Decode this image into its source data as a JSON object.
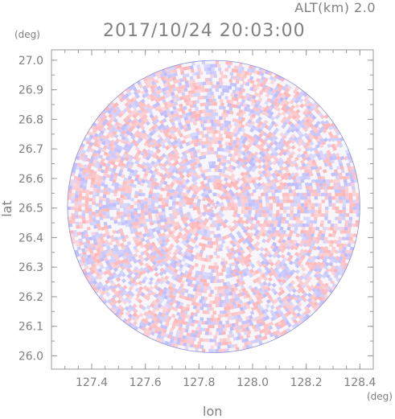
{
  "header": {
    "alt_label": "ALT(km) 2.0",
    "datetime": "2017/10/24 20:03:00"
  },
  "axes": {
    "x_unit": "(deg)",
    "y_unit": "(deg)",
    "x_label": "lon",
    "y_label": "lat",
    "x_ticks": [
      "127.4",
      "127.6",
      "127.8",
      "128.0",
      "128.2",
      "128.4"
    ],
    "y_ticks": [
      "27.0",
      "26.9",
      "26.8",
      "26.7",
      "26.6",
      "26.5",
      "26.4",
      "26.3",
      "26.2",
      "26.1",
      "26.0"
    ]
  },
  "plot": {
    "x_tick_values": [
      127.4,
      127.6,
      127.8,
      128.0,
      128.2,
      128.4
    ],
    "y_tick_values": [
      27.0,
      26.9,
      26.8,
      26.7,
      26.6,
      26.5,
      26.4,
      26.3,
      26.2,
      26.1,
      26.0
    ],
    "xlim": [
      127.25,
      128.45
    ],
    "ylim": [
      25.955,
      27.035
    ],
    "center": [
      127.855,
      26.505
    ],
    "radius_deg": 0.545,
    "colors": {
      "positive": "#ffb0b0",
      "negative": "#b8b8ff",
      "axis": "#9a9a9a"
    }
  }
}
